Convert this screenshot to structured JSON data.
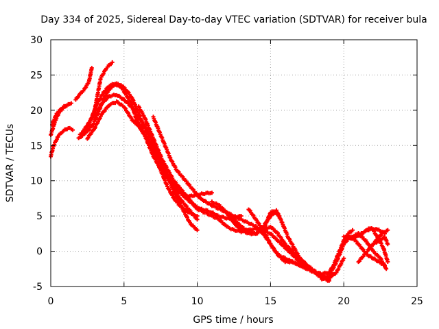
{
  "chart_data": {
    "type": "scatter",
    "title": "Day 334 of 2025, Sidereal Day-to-day VTEC variation (SDTVAR) for receiver bula",
    "xlabel": "GPS time / hours",
    "ylabel": "SDTVAR / TECUs",
    "xlim": [
      0,
      25
    ],
    "ylim": [
      -5,
      30
    ],
    "xticks": [
      "0",
      "5",
      "10",
      "15",
      "20",
      "25"
    ],
    "yticks": [
      "-5",
      "0",
      "5",
      "10",
      "15",
      "20",
      "25",
      "30"
    ],
    "grid": true,
    "marker_color": "#ff0000",
    "series": [
      {
        "name": "track-1",
        "x": [
          0.0,
          0.3,
          0.6,
          1.0,
          1.4
        ],
        "y": [
          16.5,
          18.5,
          19.8,
          20.6,
          21.0
        ]
      },
      {
        "name": "track-2",
        "x": [
          0.0,
          0.2,
          0.5,
          0.8,
          1.2,
          1.5
        ],
        "y": [
          13.5,
          15.0,
          16.3,
          17.0,
          17.5,
          17.2
        ]
      },
      {
        "name": "track-3",
        "x": [
          0.1,
          0.4,
          0.8,
          1.2
        ],
        "y": [
          18.0,
          19.5,
          20.4,
          20.8
        ]
      },
      {
        "name": "track-4",
        "x": [
          1.7,
          2.0,
          2.3,
          2.6,
          2.8
        ],
        "y": [
          21.5,
          22.3,
          23.0,
          24.0,
          26.0
        ]
      },
      {
        "name": "track-5",
        "x": [
          1.9,
          2.4,
          2.9,
          3.3,
          3.7,
          4.0,
          4.3,
          4.6,
          4.9,
          5.2,
          5.5,
          5.8,
          6.1,
          6.4,
          6.7,
          7.0,
          7.4,
          7.8,
          8.2,
          8.6,
          9.0,
          9.4,
          9.8,
          10.2,
          10.6,
          11.0,
          11.4,
          11.8,
          12.2,
          12.6,
          13.0
        ],
        "y": [
          16.0,
          16.8,
          18.0,
          20.0,
          22.0,
          23.0,
          23.5,
          23.6,
          23.0,
          22.0,
          21.0,
          19.0,
          17.5,
          16.5,
          15.0,
          13.5,
          12.0,
          10.8,
          9.8,
          8.9,
          8.0,
          7.2,
          6.5,
          6.0,
          5.8,
          5.5,
          5.0,
          4.8,
          4.6,
          4.8,
          5.0
        ]
      },
      {
        "name": "track-6",
        "x": [
          2.0,
          2.5,
          3.0,
          3.4,
          3.8,
          4.2
        ],
        "y": [
          16.5,
          17.5,
          20.0,
          24.5,
          26.0,
          26.8
        ]
      },
      {
        "name": "track-7",
        "x": [
          2.2,
          2.7,
          3.2,
          3.6,
          4.0,
          4.4,
          4.8,
          5.2,
          5.6,
          6.0,
          6.4,
          6.8,
          7.2,
          7.6,
          8.0,
          8.4,
          8.8,
          9.2,
          9.6,
          10.0
        ],
        "y": [
          17.0,
          18.5,
          21.0,
          22.5,
          23.5,
          23.8,
          23.6,
          22.8,
          21.5,
          19.5,
          17.5,
          16.0,
          14.0,
          12.0,
          10.5,
          9.0,
          7.5,
          6.5,
          5.5,
          4.5
        ]
      },
      {
        "name": "track-8",
        "x": [
          2.5,
          3.0,
          3.5,
          4.0,
          4.5,
          5.0,
          5.3,
          5.6,
          6.0,
          6.4,
          6.8,
          7.2,
          7.6,
          8.0,
          8.4,
          8.8,
          9.2,
          9.6,
          10.0
        ],
        "y": [
          16.0,
          17.5,
          19.5,
          20.8,
          21.2,
          20.5,
          19.5,
          18.5,
          17.8,
          16.5,
          15.0,
          13.0,
          11.0,
          9.0,
          7.5,
          6.5,
          5.8,
          5.3,
          5.0
        ]
      },
      {
        "name": "track-9",
        "x": [
          3.0,
          3.5,
          4.0,
          4.5,
          5.0,
          5.5,
          6.0,
          6.5,
          7.0,
          7.5,
          8.0,
          8.5,
          9.0,
          9.5,
          10.0
        ],
        "y": [
          19.0,
          21.0,
          22.0,
          22.2,
          21.5,
          20.5,
          19.0,
          17.5,
          15.5,
          13.0,
          10.5,
          8.0,
          6.0,
          4.0,
          3.0
        ]
      },
      {
        "name": "track-10",
        "x": [
          5.8,
          6.2,
          6.6,
          7.0,
          7.4,
          7.8,
          8.2,
          8.6,
          9.0,
          9.5,
          10.0,
          10.5,
          11.0
        ],
        "y": [
          18.5,
          17.5,
          16.0,
          14.5,
          13.0,
          11.5,
          10.0,
          8.8,
          8.0,
          7.8,
          8.0,
          8.2,
          8.3
        ]
      },
      {
        "name": "track-11",
        "x": [
          6.0,
          6.4,
          6.8,
          7.2,
          7.6,
          8.0,
          8.4,
          8.8,
          9.2,
          9.6,
          10.0,
          10.5,
          11.0,
          11.5,
          12.0,
          12.5,
          13.0,
          13.5,
          14.0,
          14.5,
          15.0,
          15.5,
          16.0,
          16.5,
          17.0,
          17.5,
          18.0,
          18.5,
          19.0
        ],
        "y": [
          20.5,
          19.0,
          17.0,
          15.0,
          13.0,
          11.5,
          10.0,
          9.0,
          8.0,
          7.0,
          6.0,
          5.5,
          5.0,
          4.5,
          3.5,
          3.0,
          2.8,
          3.0,
          3.2,
          3.0,
          2.5,
          1.5,
          0.5,
          -0.5,
          -1.5,
          -2.5,
          -3.0,
          -3.5,
          -4.0
        ]
      },
      {
        "name": "track-12",
        "x": [
          7.0,
          7.4,
          7.8,
          8.2,
          8.6,
          9.0,
          9.4,
          9.8,
          10.2,
          10.6,
          11.0,
          11.5,
          12.0,
          12.5,
          13.0,
          13.5,
          14.0,
          14.5,
          15.0,
          15.3,
          15.6
        ],
        "y": [
          19.0,
          17.0,
          15.0,
          13.0,
          11.5,
          10.5,
          9.5,
          8.5,
          7.5,
          7.0,
          6.5,
          6.0,
          5.5,
          4.5,
          3.5,
          2.8,
          2.5,
          3.5,
          5.0,
          5.5,
          5.0
        ]
      },
      {
        "name": "track-13",
        "x": [
          11.0,
          11.5,
          12.0,
          12.5,
          13.0,
          13.5,
          14.0,
          14.5,
          15.0,
          15.5,
          16.0,
          16.5,
          17.0,
          17.5,
          18.0,
          18.5,
          19.0,
          19.5,
          20.0
        ],
        "y": [
          7.0,
          6.5,
          5.5,
          4.0,
          3.0,
          2.5,
          2.5,
          3.0,
          3.5,
          2.5,
          1.0,
          0.0,
          -1.0,
          -2.0,
          -2.8,
          -3.5,
          -3.8,
          -3.0,
          -1.0
        ]
      },
      {
        "name": "track-14",
        "x": [
          12.0,
          12.5,
          13.0,
          13.5,
          14.0,
          14.5,
          15.0,
          15.5,
          16.0,
          16.5,
          17.0,
          17.5
        ],
        "y": [
          5.5,
          5.0,
          4.5,
          4.0,
          3.5,
          2.5,
          1.0,
          -0.5,
          -1.0,
          -1.5,
          -2.0,
          -2.5
        ]
      },
      {
        "name": "track-15",
        "x": [
          13.5,
          14.0,
          14.5,
          15.0,
          15.4,
          15.8,
          16.2,
          16.6,
          17.0,
          17.5,
          18.0,
          18.5,
          19.0
        ],
        "y": [
          6.0,
          4.5,
          3.0,
          5.5,
          5.8,
          4.0,
          2.0,
          0.5,
          -1.0,
          -2.0,
          -3.0,
          -3.8,
          -4.2
        ]
      },
      {
        "name": "track-16",
        "x": [
          14.5,
          15.0,
          15.5,
          16.0,
          16.5,
          17.0,
          17.5,
          18.0,
          18.5,
          19.0,
          19.3,
          19.6,
          20.0,
          20.3,
          20.6
        ],
        "y": [
          3.0,
          1.0,
          -0.5,
          -1.5,
          -1.5,
          -2.0,
          -2.5,
          -3.0,
          -3.2,
          -3.0,
          -2.0,
          -0.5,
          1.5,
          2.5,
          3.0
        ]
      },
      {
        "name": "track-17",
        "x": [
          18.5,
          19.0,
          19.5,
          20.0,
          20.4,
          20.8,
          21.2,
          21.6,
          22.0,
          22.4,
          22.8
        ],
        "y": [
          -4.0,
          -3.5,
          -1.5,
          1.0,
          2.0,
          1.5,
          0.5,
          -0.5,
          -1.0,
          -1.5,
          -2.0
        ]
      },
      {
        "name": "track-18",
        "x": [
          20.0,
          20.4,
          20.8,
          21.2,
          21.6,
          22.0,
          22.4,
          22.8
        ],
        "y": [
          2.0,
          1.8,
          2.0,
          2.5,
          3.0,
          3.2,
          3.0,
          2.5
        ]
      },
      {
        "name": "track-19",
        "x": [
          20.5,
          21.0,
          21.5,
          22.0,
          22.5,
          22.9
        ],
        "y": [
          2.0,
          2.5,
          1.5,
          0.0,
          -1.0,
          -2.5
        ]
      },
      {
        "name": "track-20",
        "x": [
          21.0,
          21.4,
          21.8,
          22.2,
          22.6,
          23.0
        ],
        "y": [
          -1.5,
          -0.5,
          0.5,
          1.5,
          2.5,
          3.0
        ]
      },
      {
        "name": "track-21",
        "x": [
          21.5,
          21.9,
          22.3,
          22.7,
          23.0
        ],
        "y": [
          3.0,
          3.3,
          2.0,
          0.5,
          -1.5
        ]
      },
      {
        "name": "track-22",
        "x": [
          22.0,
          22.4,
          22.8,
          23.0
        ],
        "y": [
          1.0,
          1.5,
          2.0,
          1.0
        ]
      }
    ]
  }
}
